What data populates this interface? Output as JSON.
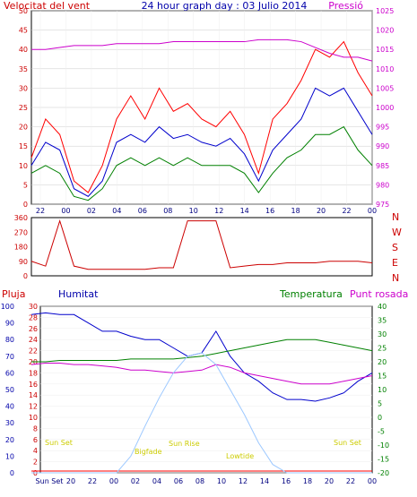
{
  "chart_data": [
    {
      "type": "line",
      "title": "24 hour graph day : 03 Julio 2014",
      "left_label": "Velocitat del vent",
      "right_label": "Pressió",
      "x_ticks": [
        "22",
        "00",
        "02",
        "04",
        "06",
        "08",
        "10",
        "12",
        "14",
        "16",
        "18",
        "20",
        "22",
        "00"
      ],
      "y_left_ticks": [
        0,
        5,
        10,
        15,
        20,
        25,
        30,
        35,
        40,
        45,
        50
      ],
      "y_right_ticks": [
        975,
        980,
        985,
        990,
        995,
        1000,
        1005,
        1010,
        1015,
        1020,
        1025
      ],
      "ylim_left": [
        0,
        50
      ],
      "ylim_right": [
        975,
        1025
      ],
      "series": [
        {
          "color": "#ff0000",
          "axis": "left",
          "x": [
            21,
            22,
            23,
            24,
            25,
            26,
            27,
            28,
            29,
            30,
            31,
            32,
            33,
            34,
            35,
            36,
            37,
            38,
            39,
            40,
            41,
            42,
            43,
            44,
            45
          ],
          "values": [
            12,
            22,
            18,
            6,
            3,
            10,
            22,
            28,
            22,
            30,
            24,
            26,
            22,
            20,
            24,
            18,
            8,
            22,
            26,
            32,
            40,
            38,
            42,
            34,
            28
          ]
        },
        {
          "color": "#0000cc",
          "axis": "left",
          "x": [
            21,
            22,
            23,
            24,
            25,
            26,
            27,
            28,
            29,
            30,
            31,
            32,
            33,
            34,
            35,
            36,
            37,
            38,
            39,
            40,
            41,
            42,
            43,
            44,
            45
          ],
          "values": [
            10,
            16,
            14,
            4,
            2,
            6,
            16,
            18,
            16,
            20,
            17,
            18,
            16,
            15,
            17,
            13,
            6,
            14,
            18,
            22,
            30,
            28,
            30,
            24,
            18
          ]
        },
        {
          "color": "#008000",
          "axis": "left",
          "x": [
            21,
            22,
            23,
            24,
            25,
            26,
            27,
            28,
            29,
            30,
            31,
            32,
            33,
            34,
            35,
            36,
            37,
            38,
            39,
            40,
            41,
            42,
            43,
            44,
            45
          ],
          "values": [
            8,
            10,
            8,
            2,
            1,
            4,
            10,
            12,
            10,
            12,
            10,
            12,
            10,
            10,
            10,
            8,
            3,
            8,
            12,
            14,
            18,
            18,
            20,
            14,
            10
          ]
        },
        {
          "color": "#cc00cc",
          "axis": "right",
          "x": [
            21,
            22,
            23,
            24,
            25,
            26,
            27,
            28,
            29,
            30,
            31,
            32,
            33,
            34,
            35,
            36,
            37,
            38,
            39,
            40,
            41,
            42,
            43,
            44,
            45
          ],
          "values": [
            1015,
            1015,
            1015.5,
            1016,
            1016,
            1016,
            1016.5,
            1016.5,
            1016.5,
            1016.5,
            1017,
            1017,
            1017,
            1017,
            1017,
            1017,
            1017.5,
            1017.5,
            1017.5,
            1017,
            1015.5,
            1014,
            1013,
            1013,
            1012
          ]
        }
      ]
    },
    {
      "type": "line",
      "y_ticks": [
        0,
        90,
        180,
        270,
        360
      ],
      "right_labels": [
        "N",
        "W",
        "S",
        "E",
        "N"
      ],
      "ylim": [
        0,
        360
      ],
      "series": [
        {
          "color": "#cc0000",
          "x": [
            21,
            22,
            23,
            24,
            25,
            26,
            27,
            28,
            29,
            30,
            31,
            32,
            33,
            34,
            35,
            36,
            37,
            38,
            39,
            40,
            41,
            42,
            43,
            44,
            45
          ],
          "values": [
            90,
            60,
            340,
            60,
            40,
            40,
            40,
            40,
            40,
            50,
            50,
            340,
            340,
            340,
            50,
            60,
            70,
            70,
            80,
            80,
            80,
            90,
            90,
            90,
            80
          ]
        }
      ]
    },
    {
      "type": "line",
      "labels": {
        "rain": "Pluja",
        "humidity": "Humitat",
        "temp": "Temperatura",
        "dew": "Punt rosada"
      },
      "x_ticks": [
        "Sun Set",
        "20",
        "22",
        "00",
        "02",
        "04",
        "06",
        "08",
        "10",
        "12",
        "14",
        "16",
        "18",
        "20",
        "22",
        "00"
      ],
      "y_rain_ticks": [
        0,
        2,
        4,
        6,
        8,
        10,
        12,
        14,
        16,
        18,
        20,
        22,
        24,
        26,
        28,
        30
      ],
      "y_hum_ticks": [
        0,
        10,
        20,
        30,
        40,
        50,
        60,
        70,
        80,
        90,
        100
      ],
      "y_temp_ticks": [
        -20,
        -15,
        -10,
        -5,
        0,
        5,
        10,
        15,
        20,
        25,
        30,
        35,
        40
      ],
      "annotations": [
        "Sun Set",
        "Sun Rise",
        "Sun Set",
        "Bigfade",
        "Lowtide"
      ],
      "series": [
        {
          "name": "Humitat",
          "color": "#0000cc",
          "x": [
            21,
            22,
            23,
            24,
            25,
            26,
            27,
            28,
            29,
            30,
            31,
            32,
            33,
            34,
            35,
            36,
            37,
            38,
            39,
            40,
            41,
            42,
            43,
            44,
            45
          ],
          "values": [
            95,
            96,
            95,
            95,
            90,
            85,
            85,
            82,
            80,
            80,
            75,
            70,
            72,
            85,
            70,
            60,
            55,
            48,
            44,
            44,
            43,
            45,
            48,
            55,
            60
          ]
        },
        {
          "name": "Temperatura",
          "color": "#008000",
          "x": [
            21,
            22,
            23,
            24,
            25,
            26,
            27,
            28,
            29,
            30,
            31,
            32,
            33,
            34,
            35,
            36,
            37,
            38,
            39,
            40,
            41,
            42,
            43,
            44,
            45
          ],
          "values": [
            20,
            20,
            20.5,
            20.5,
            20.5,
            20.5,
            20.5,
            21,
            21,
            21,
            21,
            21.5,
            22,
            23,
            24,
            25,
            26,
            27,
            28,
            28,
            28,
            27,
            26,
            25,
            24
          ]
        },
        {
          "name": "Punt rosada",
          "color": "#cc00cc",
          "x": [
            21,
            22,
            23,
            24,
            25,
            26,
            27,
            28,
            29,
            30,
            31,
            32,
            33,
            34,
            35,
            36,
            37,
            38,
            39,
            40,
            41,
            42,
            43,
            44,
            45
          ],
          "values": [
            19,
            19.5,
            19.5,
            19,
            19,
            18.5,
            18,
            17,
            17,
            16.5,
            16,
            16.5,
            17,
            19,
            18,
            16,
            15,
            14,
            13,
            12,
            12,
            12,
            13,
            14,
            15
          ]
        },
        {
          "name": "Pluja",
          "color": "#ff0000",
          "x": [
            21,
            22,
            23,
            24,
            25,
            26,
            27,
            28,
            29,
            30,
            31,
            32,
            33,
            34,
            35,
            36,
            37,
            38,
            39,
            40,
            41,
            42,
            43,
            44,
            45
          ],
          "values": [
            0,
            0,
            0,
            0,
            0,
            0,
            0,
            0,
            0,
            0,
            0,
            0,
            0,
            0,
            0,
            0,
            0,
            0,
            0,
            0,
            0,
            0,
            0,
            0,
            0
          ]
        },
        {
          "name": "Sun",
          "color": "#9cc8ff",
          "x": [
            21,
            22,
            23,
            24,
            25,
            26,
            27,
            28,
            29,
            30,
            31,
            32,
            33,
            34,
            35,
            36,
            37,
            38,
            39,
            40,
            41,
            42,
            43,
            44,
            45
          ],
          "values": [
            0,
            0,
            0,
            0,
            0,
            0,
            0,
            10,
            28,
            45,
            60,
            70,
            72,
            65,
            50,
            35,
            18,
            5,
            0,
            0,
            0,
            0,
            0,
            0,
            0
          ]
        }
      ]
    }
  ]
}
